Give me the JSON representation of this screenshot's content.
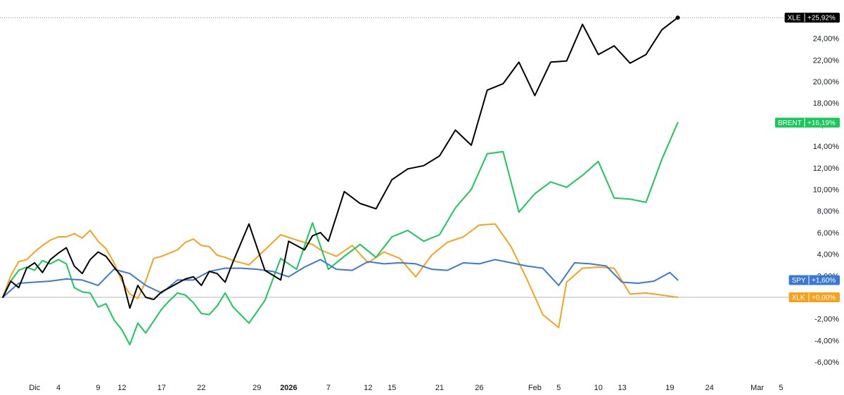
{
  "chart_data": {
    "type": "line",
    "title": "",
    "xlabel": "",
    "ylabel": "",
    "y_unit": "%",
    "ylim": [
      -7,
      27
    ],
    "y_ticks": [
      "-6,00%",
      "-4,00%",
      "-2,00%",
      "2,00%",
      "4,00%",
      "6,00%",
      "8,00%",
      "10,00%",
      "12,00%",
      "14,00%",
      "16,00%",
      "18,00%",
      "20,00%",
      "22,00%",
      "24,00%"
    ],
    "y_tick_values": [
      -6,
      -4,
      -2,
      2,
      4,
      6,
      8,
      10,
      12,
      14,
      16,
      18,
      20,
      22,
      24
    ],
    "x_start_date": "2025-11-27",
    "x_ticks": [
      {
        "date": "2025-12-01",
        "label": "Dic",
        "bold": false
      },
      {
        "date": "2025-12-04",
        "label": "4",
        "bold": false
      },
      {
        "date": "2025-12-09",
        "label": "9",
        "bold": false
      },
      {
        "date": "2025-12-12",
        "label": "12",
        "bold": false
      },
      {
        "date": "2025-12-17",
        "label": "17",
        "bold": false
      },
      {
        "date": "2025-12-22",
        "label": "22",
        "bold": false
      },
      {
        "date": "2025-12-29",
        "label": "29",
        "bold": false
      },
      {
        "date": "2026-01-02",
        "label": "2026",
        "bold": true
      },
      {
        "date": "2026-01-07",
        "label": "7",
        "bold": false
      },
      {
        "date": "2026-01-12",
        "label": "12",
        "bold": false
      },
      {
        "date": "2026-01-15",
        "label": "15",
        "bold": false
      },
      {
        "date": "2026-01-21",
        "label": "21",
        "bold": false
      },
      {
        "date": "2026-01-26",
        "label": "26",
        "bold": false
      },
      {
        "date": "2026-02-02",
        "label": "Feb",
        "bold": false
      },
      {
        "date": "2026-02-05",
        "label": "5",
        "bold": false
      },
      {
        "date": "2026-02-10",
        "label": "10",
        "bold": false
      },
      {
        "date": "2026-02-13",
        "label": "13",
        "bold": false
      },
      {
        "date": "2026-02-19",
        "label": "19",
        "bold": false
      },
      {
        "date": "2026-02-24",
        "label": "24",
        "bold": false
      },
      {
        "date": "2026-03-02",
        "label": "Mar",
        "bold": false
      },
      {
        "date": "2026-03-05",
        "label": "5",
        "bold": false
      }
    ],
    "series": [
      {
        "name": "XLK",
        "label": "+0,00%",
        "color": "#f7a21b",
        "x": [
          "2025-11-27",
          "2025-11-28",
          "2025-11-29",
          "2025-11-30",
          "2025-12-01",
          "2025-12-02",
          "2025-12-03",
          "2025-12-04",
          "2025-12-05",
          "2025-12-06",
          "2025-12-07",
          "2025-12-08",
          "2025-12-09",
          "2025-12-10",
          "2025-12-11",
          "2025-12-12",
          "2025-12-13",
          "2025-12-14",
          "2025-12-15",
          "2025-12-16",
          "2025-12-17",
          "2025-12-18",
          "2025-12-19",
          "2025-12-20",
          "2025-12-21",
          "2025-12-22",
          "2025-12-23",
          "2025-12-24",
          "2025-12-25",
          "2025-12-26",
          "2025-12-28",
          "2025-12-30",
          "2026-01-01",
          "2026-01-03",
          "2026-01-05",
          "2026-01-06",
          "2026-01-08",
          "2026-01-10",
          "2026-01-12",
          "2026-01-14",
          "2026-01-16",
          "2026-01-18",
          "2026-01-20",
          "2026-01-22",
          "2026-01-24",
          "2026-01-26",
          "2026-01-28",
          "2026-01-30",
          "2026-02-01",
          "2026-02-03",
          "2026-02-05",
          "2026-02-06",
          "2026-02-08",
          "2026-02-10",
          "2026-02-12",
          "2026-02-14",
          "2026-02-16",
          "2026-02-18",
          "2026-02-20"
        ],
        "y": [
          0,
          2,
          3.3,
          3.5,
          4.2,
          4.8,
          5.3,
          5.6,
          5.6,
          5.9,
          5.5,
          6.2,
          5.2,
          4.5,
          3.2,
          1.5,
          0.3,
          -0.1,
          1.5,
          3.6,
          3.8,
          4.1,
          4.4,
          5.1,
          5.4,
          4.8,
          4.7,
          3.9,
          3.7,
          3.4,
          3,
          4.4,
          5.8,
          5.3,
          4.9,
          4.4,
          3.8,
          4.8,
          3.2,
          4.2,
          3.6,
          1.9,
          3.9,
          5.1,
          5.6,
          6.7,
          6.8,
          4.7,
          1.7,
          -1.6,
          -2.8,
          1.4,
          2.7,
          2.8,
          2.7,
          0.3,
          0.4,
          0.2,
          0
        ]
      },
      {
        "name": "BRENT",
        "label": "+16,19%",
        "color": "#19c85a",
        "x": [
          "2025-11-27",
          "2025-11-28",
          "2025-11-29",
          "2025-11-30",
          "2025-12-01",
          "2025-12-02",
          "2025-12-03",
          "2025-12-04",
          "2025-12-05",
          "2025-12-06",
          "2025-12-07",
          "2025-12-08",
          "2025-12-09",
          "2025-12-10",
          "2025-12-11",
          "2025-12-12",
          "2025-12-13",
          "2025-12-14",
          "2025-12-15",
          "2025-12-16",
          "2025-12-17",
          "2025-12-18",
          "2025-12-19",
          "2025-12-20",
          "2025-12-21",
          "2025-12-22",
          "2025-12-23",
          "2025-12-24",
          "2025-12-25",
          "2025-12-26",
          "2025-12-28",
          "2025-12-30",
          "2026-01-01",
          "2026-01-03",
          "2026-01-05",
          "2026-01-07",
          "2026-01-09",
          "2026-01-11",
          "2026-01-13",
          "2026-01-15",
          "2026-01-17",
          "2026-01-19",
          "2026-01-21",
          "2026-01-23",
          "2026-01-25",
          "2026-01-27",
          "2026-01-29",
          "2026-01-31",
          "2026-02-02",
          "2026-02-04",
          "2026-02-06",
          "2026-02-08",
          "2026-02-10",
          "2026-02-12",
          "2026-02-14",
          "2026-02-16",
          "2026-02-18",
          "2026-02-20"
        ],
        "y": [
          0,
          1.5,
          2.5,
          2.8,
          2.5,
          3.4,
          3.1,
          3.5,
          3.1,
          0.9,
          0.5,
          0.4,
          -0.9,
          -0.6,
          -2.1,
          -3,
          -4.4,
          -2.4,
          -3.3,
          -2.2,
          -1.1,
          -0.3,
          0.4,
          0.2,
          -0.5,
          -1.5,
          -1.6,
          -0.8,
          0.4,
          -0.9,
          -2.4,
          -0.3,
          3.6,
          2.6,
          6.9,
          2.6,
          3.8,
          4.9,
          3.7,
          5.6,
          6.2,
          5.2,
          5.8,
          8.3,
          10,
          13.3,
          13.5,
          7.9,
          9.6,
          10.7,
          10.2,
          11.3,
          12.6,
          9.2,
          9.1,
          8.8,
          12.8,
          16.19
        ]
      },
      {
        "name": "SPY",
        "label": "+1,60%",
        "color": "#3a78d8",
        "x": [
          "2025-11-27",
          "2025-11-29",
          "2025-12-01",
          "2025-12-03",
          "2025-12-05",
          "2025-12-07",
          "2025-12-09",
          "2025-12-11",
          "2025-12-13",
          "2025-12-15",
          "2025-12-17",
          "2025-12-19",
          "2025-12-21",
          "2025-12-23",
          "2025-12-25",
          "2025-12-27",
          "2025-12-29",
          "2025-12-31",
          "2026-01-02",
          "2026-01-04",
          "2026-01-06",
          "2026-01-08",
          "2026-01-10",
          "2026-01-12",
          "2026-01-14",
          "2026-01-16",
          "2026-01-18",
          "2026-01-20",
          "2026-01-22",
          "2026-01-24",
          "2026-01-26",
          "2026-01-28",
          "2026-01-30",
          "2026-02-01",
          "2026-02-03",
          "2026-02-05",
          "2026-02-07",
          "2026-02-09",
          "2026-02-11",
          "2026-02-13",
          "2026-02-15",
          "2026-02-17",
          "2026-02-19",
          "2026-02-20"
        ],
        "y": [
          0,
          1.3,
          1.4,
          1.5,
          1.7,
          1.6,
          1.1,
          2.6,
          2.2,
          1.1,
          0.4,
          1.6,
          1.6,
          2.4,
          2.7,
          2.7,
          2.6,
          2.4,
          1.9,
          2.8,
          3.5,
          2.6,
          2.5,
          3.3,
          3.1,
          3.2,
          3.1,
          2.6,
          2.5,
          3.2,
          3.1,
          3.5,
          3.2,
          2.9,
          2.7,
          1.1,
          3.2,
          3.1,
          2.9,
          1.4,
          1.3,
          1.5,
          2.3,
          1.6
        ]
      },
      {
        "name": "XLE",
        "label": "+25,92%",
        "color": "#000000",
        "x": [
          "2025-11-27",
          "2025-11-28",
          "2025-11-29",
          "2025-11-30",
          "2025-12-01",
          "2025-12-02",
          "2025-12-03",
          "2025-12-04",
          "2025-12-05",
          "2025-12-06",
          "2025-12-07",
          "2025-12-08",
          "2025-12-09",
          "2025-12-10",
          "2025-12-11",
          "2025-12-12",
          "2025-12-13",
          "2025-12-14",
          "2025-12-15",
          "2025-12-16",
          "2025-12-17",
          "2025-12-18",
          "2025-12-19",
          "2025-12-20",
          "2025-12-21",
          "2025-12-22",
          "2025-12-23",
          "2025-12-24",
          "2025-12-25",
          "2025-12-26",
          "2025-12-28",
          "2025-12-30",
          "2026-01-01",
          "2026-01-02",
          "2026-01-04",
          "2026-01-05",
          "2026-01-06",
          "2026-01-07",
          "2026-01-09",
          "2026-01-11",
          "2026-01-13",
          "2026-01-15",
          "2026-01-17",
          "2026-01-19",
          "2026-01-21",
          "2026-01-23",
          "2026-01-25",
          "2026-01-27",
          "2026-01-29",
          "2026-01-31",
          "2026-02-02",
          "2026-02-04",
          "2026-02-06",
          "2026-02-08",
          "2026-02-10",
          "2026-02-12",
          "2026-02-14",
          "2026-02-16",
          "2026-02-18",
          "2026-02-20"
        ],
        "y": [
          0,
          1.5,
          0.9,
          2.7,
          3.2,
          2.3,
          3.5,
          4.1,
          4.6,
          2.9,
          2.2,
          3.5,
          4.2,
          3.8,
          2.8,
          1.9,
          -1,
          1.1,
          0,
          -0.2,
          0.5,
          0.9,
          1.3,
          1.7,
          1.9,
          1.1,
          2.4,
          2.2,
          1.4,
          3.3,
          6.8,
          2.5,
          1.6,
          5.2,
          4.4,
          5.7,
          6,
          5.2,
          9.8,
          8.7,
          8.2,
          10.9,
          11.9,
          12.2,
          13.1,
          15.5,
          14.1,
          19.2,
          19.8,
          21.8,
          18.7,
          21.8,
          21.9,
          25.3,
          22.5,
          23.3,
          21.7,
          22.5,
          24.8,
          25.92
        ]
      }
    ],
    "badges": [
      {
        "symbol": "XLE",
        "value": "+25,92%",
        "color": "#000000",
        "y": 25.92
      },
      {
        "symbol": "BRENT",
        "value": "+16,19%",
        "color": "#19c85a",
        "y": 16.19
      },
      {
        "symbol": "SPY",
        "value": "+1,60%",
        "color": "#3a78d8",
        "y": 1.6
      },
      {
        "symbol": "XLK",
        "value": "+0,00%",
        "color": "#f7a21b",
        "y": 0
      }
    ],
    "grid": false,
    "legend": "right-axis badges"
  }
}
